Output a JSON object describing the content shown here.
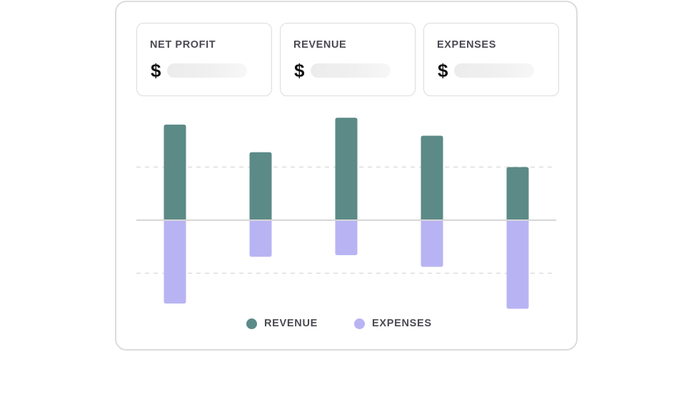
{
  "cards": [
    {
      "title": "NET PROFIT",
      "currency": "$"
    },
    {
      "title": "REVENUE",
      "currency": "$"
    },
    {
      "title": "EXPENSES",
      "currency": "$"
    }
  ],
  "colors": {
    "revenue": "#5b8a87",
    "expenses": "#b8b4f3",
    "gridline": "#dddddd",
    "baseline": "#d6d6d6"
  },
  "chart_data": {
    "type": "bar",
    "stacked_diverging": true,
    "categories": [
      "",
      "",
      "",
      "",
      ""
    ],
    "series": [
      {
        "name": "REVENUE",
        "values": [
          1.8,
          1.28,
          1.93,
          1.59,
          1.0
        ]
      },
      {
        "name": "EXPENSES",
        "values": [
          -1.57,
          -0.69,
          -0.66,
          -0.88,
          -1.67
        ]
      }
    ],
    "ylim": [
      -2.0,
      2.0
    ],
    "gridlines": [
      1.0,
      -1.0
    ],
    "grid_style": "dashed",
    "axis_labels_visible": false,
    "legend_position": "bottom-center"
  }
}
